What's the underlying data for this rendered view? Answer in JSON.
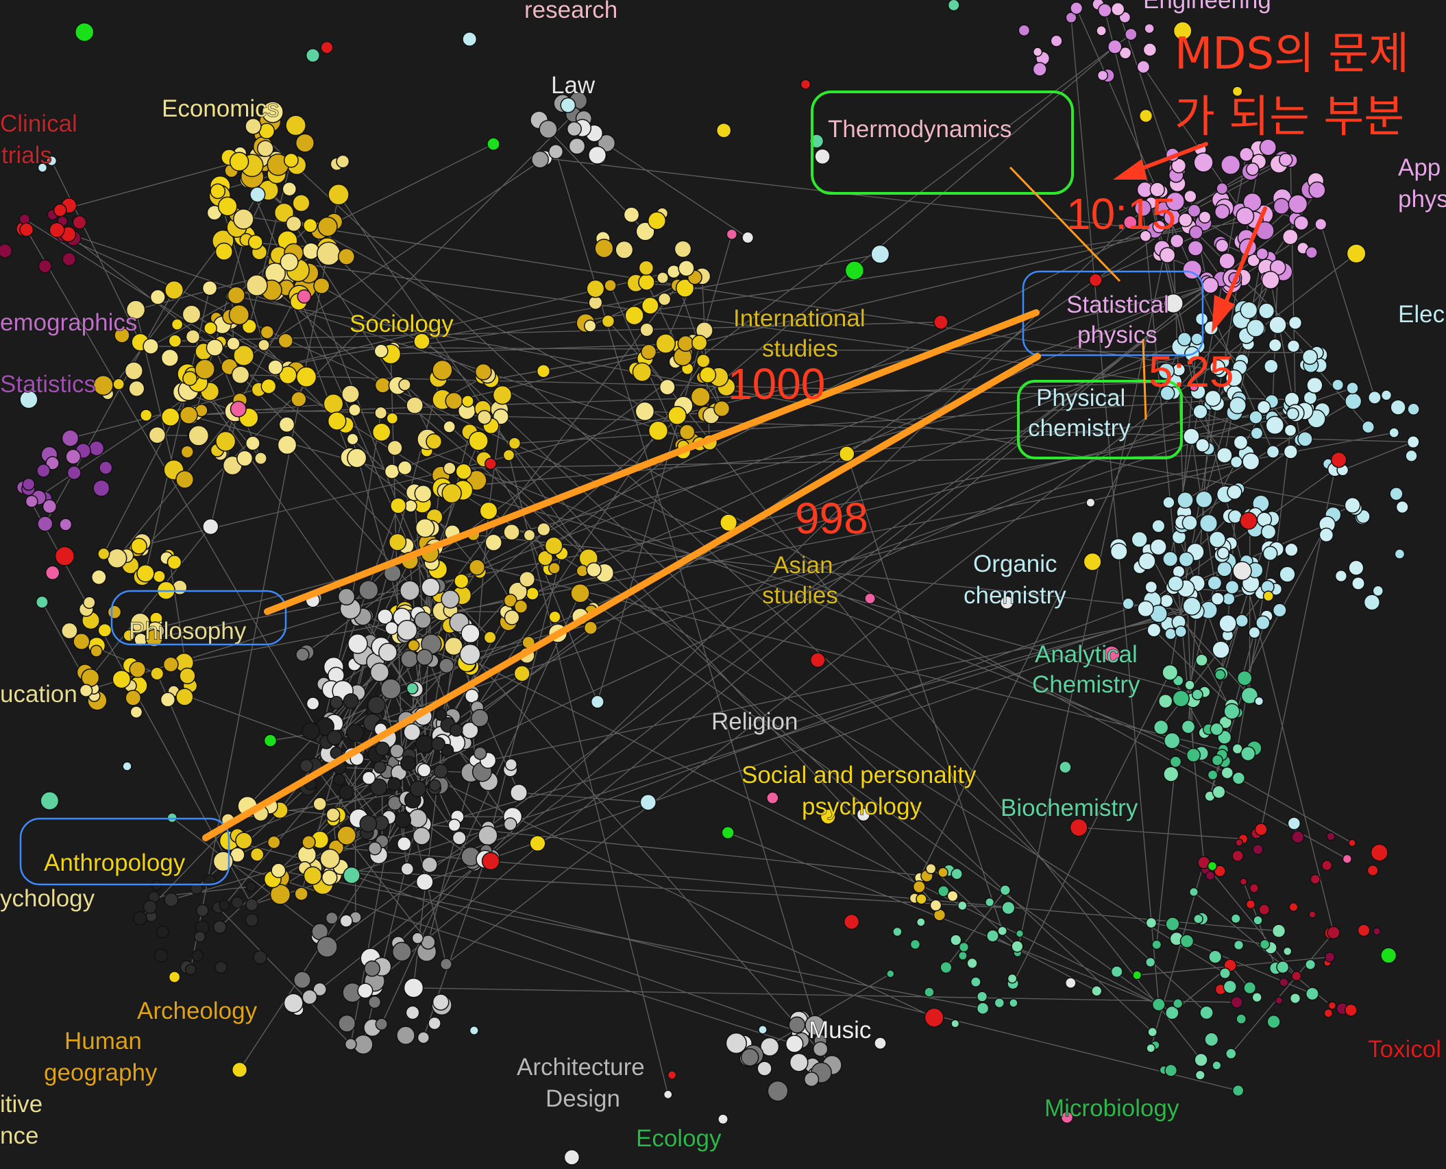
{
  "colors": {
    "background": "#1b1b1b",
    "edge": "#9a9a9a",
    "social_yellow": "#f2d417",
    "humanities_white": "#e8e8e8",
    "chem_lightblue": "#bfeaf0",
    "physics_pink": "#e6a6e8",
    "bio_green": "#5fd39f",
    "annotation_red": "#ff3b1f",
    "orange_line": "#ff9a1e",
    "green_box": "#2ee82e",
    "blue_box": "#3d8cff"
  },
  "discipline_labels": [
    {
      "id": "research",
      "text": "research",
      "color": "#f0b8c6"
    },
    {
      "id": "engineering",
      "text": "Engineering",
      "color": "#e8b0e8"
    },
    {
      "id": "law",
      "text": "Law",
      "color": "#e6e6e6"
    },
    {
      "id": "economics",
      "text": "Economics",
      "color": "#efe28a"
    },
    {
      "id": "clinical",
      "text": "Clinical",
      "color": "#c0262a"
    },
    {
      "id": "trials",
      "text": "trials",
      "color": "#c0262a"
    },
    {
      "id": "demographics",
      "text": "emographics",
      "color": "#c070c8"
    },
    {
      "id": "statistics",
      "text": "Statistics",
      "color": "#a050b0"
    },
    {
      "id": "sociology",
      "text": "Sociology",
      "color": "#f2d417"
    },
    {
      "id": "international",
      "text": "International",
      "color": "#d8b81c"
    },
    {
      "id": "studies1",
      "text": "studies",
      "color": "#d8b81c"
    },
    {
      "id": "asian",
      "text": "Asian",
      "color": "#d8b81c"
    },
    {
      "id": "studies2",
      "text": "studies",
      "color": "#d8b81c"
    },
    {
      "id": "philosophy",
      "text": "Philosophy",
      "color": "#e8dc90"
    },
    {
      "id": "education",
      "text": "ucation",
      "color": "#e8dc90"
    },
    {
      "id": "anthropology",
      "text": "Anthropology",
      "color": "#f2d417"
    },
    {
      "id": "psychology",
      "text": "ychology",
      "color": "#e8dc90"
    },
    {
      "id": "archeology",
      "text": "Archeology",
      "color": "#e0a317"
    },
    {
      "id": "human",
      "text": "Human",
      "color": "#e0a317"
    },
    {
      "id": "geography",
      "text": "geography",
      "color": "#e0a317"
    },
    {
      "id": "itive",
      "text": "itive",
      "color": "#e8dc90"
    },
    {
      "id": "nce",
      "text": "nce",
      "color": "#e8dc90"
    },
    {
      "id": "religion",
      "text": "Religion",
      "color": "#d0d0d0"
    },
    {
      "id": "social1",
      "text": "Social and personality",
      "color": "#f2d417"
    },
    {
      "id": "social2",
      "text": "psychology",
      "color": "#f2d417"
    },
    {
      "id": "architecture",
      "text": "Architecture",
      "color": "#b8b8b8"
    },
    {
      "id": "design",
      "text": "Design",
      "color": "#b8b8b8"
    },
    {
      "id": "ecology",
      "text": "Ecology",
      "color": "#2db84a"
    },
    {
      "id": "music",
      "text": "Music",
      "color": "#f0f0f0"
    },
    {
      "id": "thermodynamics",
      "text": "Thermodynamics",
      "color": "#f0b8c6"
    },
    {
      "id": "statphys1",
      "text": "Statistical",
      "color": "#e6a6e8"
    },
    {
      "id": "statphys2",
      "text": "physics",
      "color": "#e6a6e8"
    },
    {
      "id": "physchem1",
      "text": "Physical",
      "color": "#bfeaf0"
    },
    {
      "id": "physchem2",
      "text": "chemistry",
      "color": "#bfeaf0"
    },
    {
      "id": "organic1",
      "text": "Organic",
      "color": "#bfeaf0"
    },
    {
      "id": "organic2",
      "text": "chemistry",
      "color": "#bfeaf0"
    },
    {
      "id": "analytical1",
      "text": "Analytical",
      "color": "#5fd39f"
    },
    {
      "id": "analytical2",
      "text": "Chemistry",
      "color": "#5fd39f"
    },
    {
      "id": "biochemistry",
      "text": "Biochemistry",
      "color": "#5fd39f"
    },
    {
      "id": "microbiology",
      "text": "Microbiology",
      "color": "#2db84a"
    },
    {
      "id": "toxicology",
      "text": "Toxicol",
      "color": "#e01a1a"
    },
    {
      "id": "applied1",
      "text": "App",
      "color": "#e6a6e8"
    },
    {
      "id": "applied2",
      "text": "phys",
      "color": "#e6a6e8"
    },
    {
      "id": "electrical",
      "text": "Elec",
      "color": "#bfeaf0"
    }
  ],
  "annotations": {
    "title_line1": "MDS의 문제",
    "title_line2": "가 되는 부분",
    "ratio_thermo_stat": "10:15",
    "ratio_stat_physchem": "5:25",
    "distance_philosophy": "1000",
    "distance_anthropology": "998"
  }
}
